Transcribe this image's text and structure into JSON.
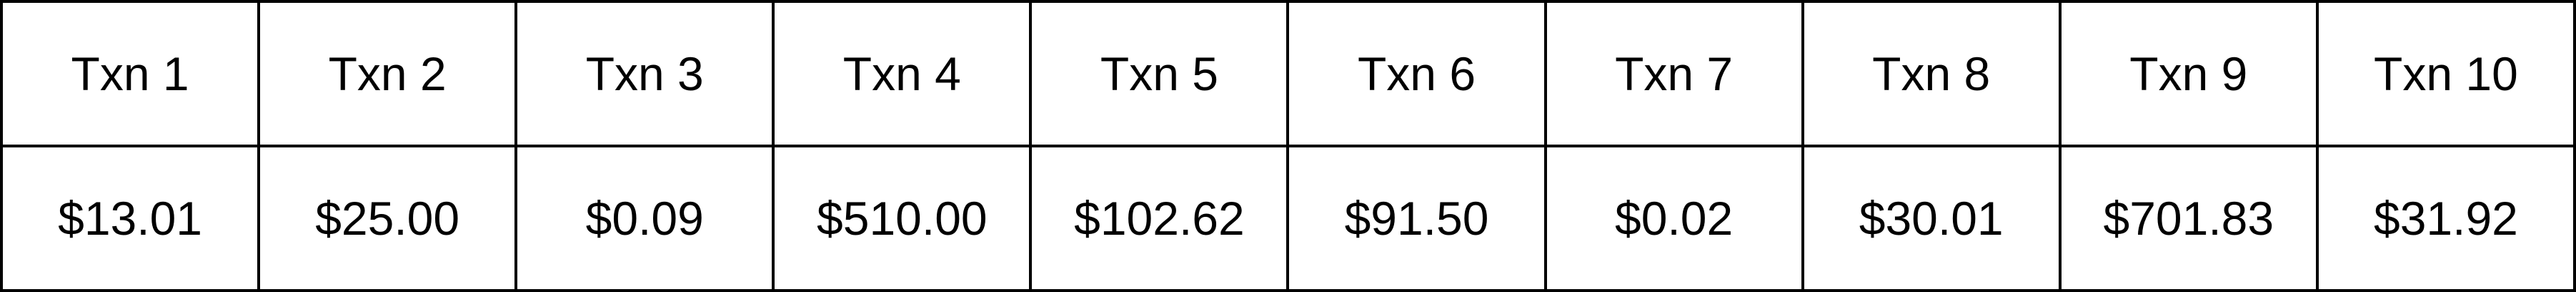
{
  "table": {
    "headers": [
      "Txn 1",
      "Txn 2",
      "Txn 3",
      "Txn 4",
      "Txn 5",
      "Txn 6",
      "Txn 7",
      "Txn 8",
      "Txn 9",
      "Txn 10"
    ],
    "values": [
      "$13.01",
      "$25.00",
      "$0.09",
      "$510.00",
      "$102.62",
      "$91.50",
      "$0.02",
      "$30.01",
      "$701.83",
      "$31.92"
    ]
  }
}
